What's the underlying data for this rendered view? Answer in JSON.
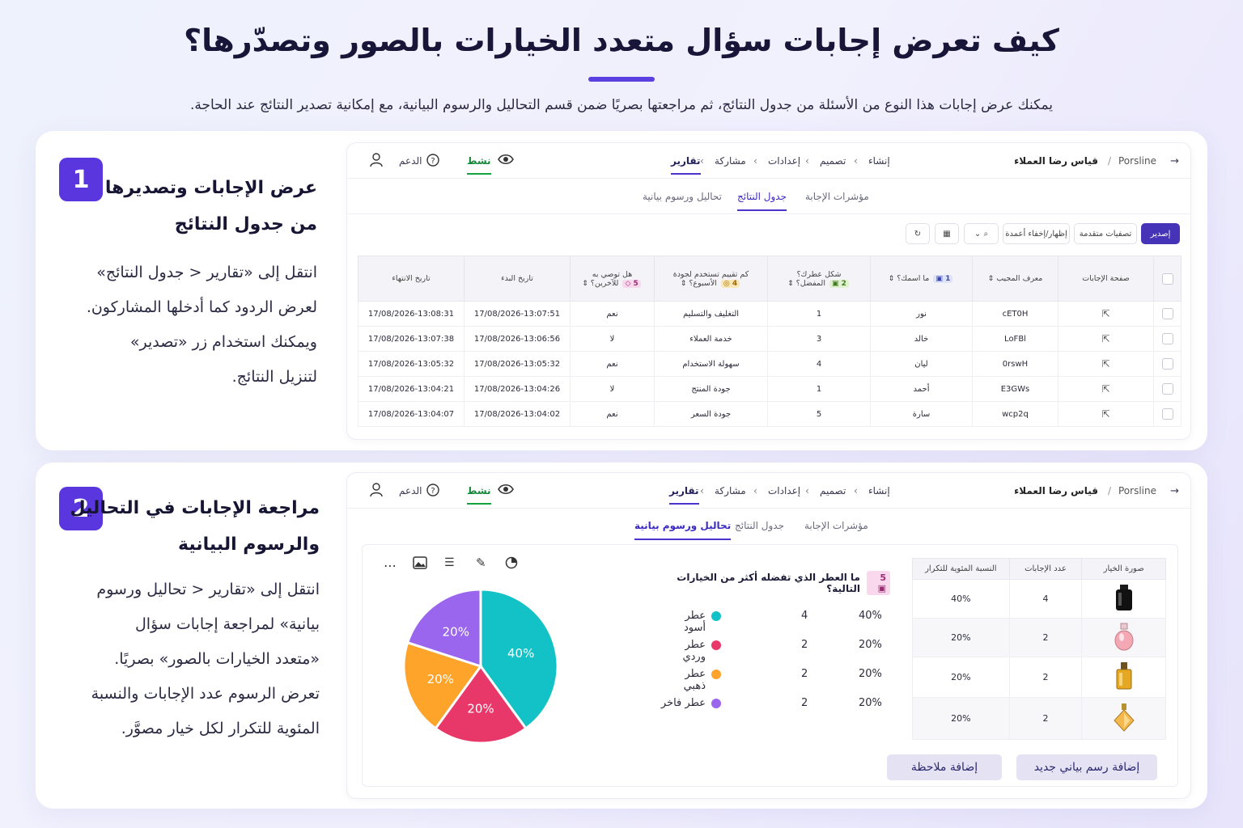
{
  "header": {
    "title": "كيف تعرض إجابات سؤال متعدد الخيارات بالصور وتصدّرها؟",
    "subtitle": "يمكنك عرض إجابات هذا النوع من الأسئلة من جدول النتائج، ثم مراجعتها بصريًا ضمن قسم التحاليل والرسوم البيانية، مع إمكانية تصدير النتائج عند الحاجة."
  },
  "step1": {
    "number": "1",
    "heading": "عرض الإجابات وتصديرها\nمن جدول النتائج",
    "description": "انتقل إلى «تقارير < جدول النتائج»\nلعرض الردود كما أدخلها المشاركون.\nويمكنك استخدام زر «تصدير»\nلتنزيل النتائج."
  },
  "step2": {
    "number": "2",
    "heading": "مراجعة الإجابات في التحاليل\nوالرسوم البيانية",
    "description": "انتقل إلى «تقارير < تحاليل ورسوم\nبيانية» لمراجعة إجابات سؤال\n«متعدد الخيارات بالصور» بصريًا.\nتعرض الرسوم عدد الإجابات والنسبة\nالمئوية للتكرار لكل خيار مصوَّر."
  },
  "app": {
    "brand": "Porsline",
    "separator": "/",
    "survey_name": "قياس رضا العملاء",
    "breadcrumbs": [
      "إنشاء",
      "تصميم",
      "إعدادات",
      "مشاركة",
      "تقارير"
    ],
    "status": "نشط",
    "support": "الدعم",
    "tabs": [
      "مؤشرات الإجابة",
      "جدول النتائج",
      "تحاليل ورسوم بيانية"
    ]
  },
  "toolbar": {
    "export": "إصدير",
    "advanced_filters": "تصفيات متقدمة",
    "columns": "إظهار/إخفاء أعمدة"
  },
  "results_table": {
    "headers": {
      "page": "صفحة الإجابات",
      "id": "معرف المجيب",
      "q1": "ما اسمك؟",
      "q1_num": "1",
      "q2a": "شكل عطرك؟",
      "q2b": "المفضل؟",
      "q2_num": "2",
      "q4a": "كم تقييم تستخدم لجودة",
      "q4b": "الأسبوع؟",
      "q4_num": "4",
      "q5a": "هل توصي به",
      "q5b": "للآخرين؟",
      "q5_num": "5",
      "start": "تاريخ البدء",
      "end": "تاريخ الانتهاء"
    },
    "rows": [
      {
        "id": "cET0H",
        "name": "نور",
        "shape": "1",
        "rating": "التغليف والتسليم",
        "recommend": "نعم",
        "start": "17/08/2026-13:07:51",
        "end": "17/08/2026-13:08:31"
      },
      {
        "id": "LoFBl",
        "name": "خالد",
        "shape": "3",
        "rating": "خدمة العملاء",
        "recommend": "لا",
        "start": "17/08/2026-13:06:56",
        "end": "17/08/2026-13:07:38"
      },
      {
        "id": "0rswH",
        "name": "ليان",
        "shape": "4",
        "rating": "سهولة الاستخدام",
        "recommend": "نعم",
        "start": "17/08/2026-13:05:32",
        "end": "17/08/2026-13:05:32"
      },
      {
        "id": "E3GWs",
        "name": "أحمد",
        "shape": "1",
        "rating": "جودة المنتج",
        "recommend": "لا",
        "start": "17/08/2026-13:04:26",
        "end": "17/08/2026-13:04:21"
      },
      {
        "id": "wcp2q",
        "name": "سارة",
        "shape": "5",
        "rating": "جودة السعر",
        "recommend": "نعم",
        "start": "17/08/2026-13:04:02",
        "end": "17/08/2026-13:04:07"
      }
    ]
  },
  "analysis": {
    "question_num": "5",
    "question": "ما العطر الذي تفضله أكثر من الخيارات التالية؟",
    "table_headers": [
      "صورة الخيار",
      "عدد الإجابات",
      "النسبة المئوية للتكرار"
    ],
    "add_chart": "إضافة رسم بياني جديد",
    "add_note": "إضافة ملاحظة"
  },
  "chart_data": {
    "type": "pie",
    "title": "ما العطر الذي تفضله أكثر من الخيارات التالية؟",
    "categories": [
      "عطر أسود",
      "عطر وردي",
      "عطر ذهبي",
      "عطر فاخر"
    ],
    "counts": [
      4,
      2,
      2,
      2
    ],
    "percent_labels": [
      "40%",
      "20%",
      "20%",
      "20%"
    ],
    "values": [
      40,
      20,
      20,
      20
    ],
    "colors": [
      "#13c2c6",
      "#e8386a",
      "#ffa42a",
      "#9a66ee"
    ],
    "legend_position": "right"
  },
  "colors": {
    "accent": "#5a36df",
    "active_green": "#14a33f"
  }
}
